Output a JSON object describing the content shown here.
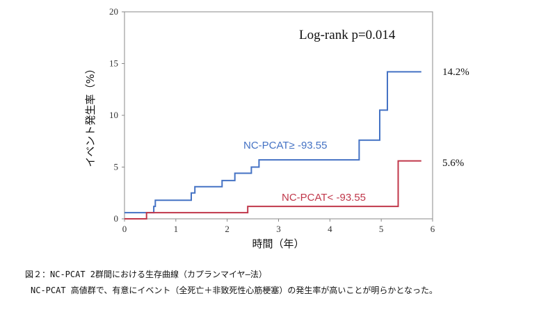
{
  "chart_data": {
    "type": "line",
    "subtype": "kaplan-meier cumulative incidence (step)",
    "annotation": "Log-rank p=0.014",
    "xlabel": "時間（年）",
    "ylabel": "イベント発生率（%）",
    "xlim": [
      0,
      6
    ],
    "ylim": [
      0,
      20
    ],
    "xticks": [
      "0",
      "1",
      "2",
      "3",
      "4",
      "5",
      "6"
    ],
    "yticks": [
      "0",
      "5",
      "10",
      "15",
      "20"
    ],
    "grid": false,
    "series": [
      {
        "name": "NC-PCAT≥ -93.55",
        "color": "#4472C4",
        "end_label": "14.2%",
        "x": [
          0,
          0.57,
          0.57,
          0.6,
          0.6,
          1.3,
          1.3,
          1.37,
          1.37,
          1.9,
          1.9,
          2.15,
          2.15,
          2.47,
          2.47,
          2.62,
          2.62,
          4.57,
          4.57,
          4.97,
          4.97,
          5.12,
          5.12,
          5.78
        ],
        "y": [
          0.6,
          0.6,
          1.2,
          1.2,
          1.8,
          1.8,
          2.5,
          2.5,
          3.1,
          3.1,
          3.7,
          3.7,
          4.4,
          4.4,
          5.0,
          5.0,
          5.7,
          5.7,
          7.6,
          7.6,
          10.5,
          10.5,
          14.2,
          14.2
        ]
      },
      {
        "name": "NC-PCAT< -93.55",
        "color": "#C0374A",
        "end_label": "5.6%",
        "x": [
          0,
          0.43,
          0.43,
          2.4,
          2.4,
          5.33,
          5.33,
          5.78
        ],
        "y": [
          0,
          0,
          0.6,
          0.6,
          1.2,
          1.2,
          5.6,
          5.6
        ]
      }
    ]
  },
  "caption": {
    "title": "図２：NC-PCAT 2群間における生存曲線（カプランマイヤ―法）",
    "text": "NC-PCAT 高値群で、有意にイベント（全死亡＋非致死性心筋梗塞）の発生率が高いことが明らかとなった。"
  }
}
